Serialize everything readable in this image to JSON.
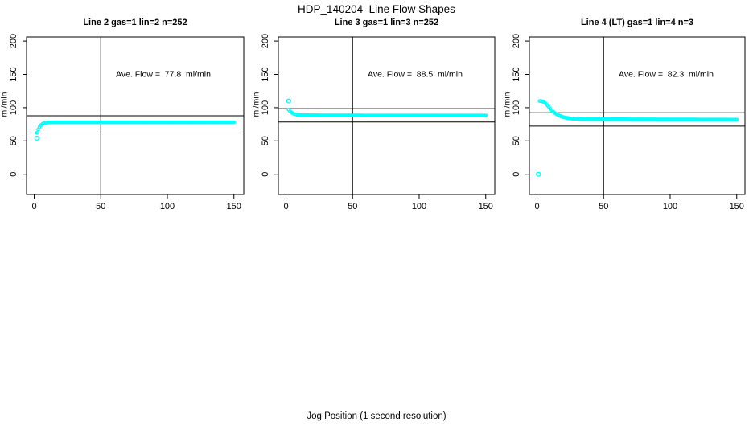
{
  "chart_data": {
    "type": "scatter",
    "title": "HDP_140204  Line Flow Shapes",
    "xlabel": "Jog Position (1 second resolution)",
    "point_color": "#00FFFF",
    "axis_color": "#000000",
    "x_ticks": [
      0,
      50,
      100,
      150
    ],
    "y_ticks": [
      0,
      50,
      100,
      150,
      200
    ],
    "xlim": [
      -6,
      156
    ],
    "ylim": [
      -30,
      206
    ],
    "grid": false,
    "legend": "none",
    "panels": [
      {
        "title": "Line 2 gas=1 lin=2 n=252",
        "ylabel": "ml/min",
        "annotation": "Ave. Flow =  77.8  ml/min",
        "ave_flow": 77.8,
        "ref_lines": [
          87.8,
          67.8
        ],
        "vline_x": 50,
        "n": 252,
        "outlier_points": [
          [
            2,
            54
          ]
        ],
        "curve_points": [
          [
            2,
            62
          ],
          [
            3,
            67
          ],
          [
            4,
            71
          ],
          [
            5,
            73.5
          ],
          [
            6,
            75.3
          ],
          [
            7,
            76.4
          ],
          [
            8,
            77
          ],
          [
            9,
            77.4
          ],
          [
            10,
            77.7
          ],
          [
            12,
            77.9
          ],
          [
            15,
            78
          ],
          [
            20,
            78
          ],
          [
            30,
            78
          ],
          [
            40,
            78
          ],
          [
            50,
            78
          ],
          [
            60,
            78
          ],
          [
            70,
            78
          ],
          [
            80,
            78
          ],
          [
            90,
            78
          ],
          [
            100,
            78
          ],
          [
            110,
            78
          ],
          [
            120,
            78
          ],
          [
            130,
            78
          ],
          [
            140,
            78
          ],
          [
            150,
            78
          ]
        ]
      },
      {
        "title": "Line 3 gas=1 lin=3 n=252",
        "ylabel": "ml/min",
        "annotation": "Ave. Flow =  88.5  ml/min",
        "ave_flow": 88.5,
        "ref_lines": [
          98.5,
          78.5
        ],
        "vline_x": 50,
        "n": 252,
        "outlier_points": [
          [
            2,
            110
          ]
        ],
        "curve_points": [
          [
            2,
            97
          ],
          [
            3,
            94.5
          ],
          [
            4,
            92.8
          ],
          [
            5,
            91.5
          ],
          [
            6,
            90.6
          ],
          [
            7,
            90
          ],
          [
            8,
            89.5
          ],
          [
            9,
            89.2
          ],
          [
            10,
            89
          ],
          [
            12,
            88.7
          ],
          [
            15,
            88.5
          ],
          [
            20,
            88.4
          ],
          [
            30,
            88.3
          ],
          [
            40,
            88.3
          ],
          [
            50,
            88.3
          ],
          [
            60,
            88.2
          ],
          [
            70,
            88.2
          ],
          [
            80,
            88.2
          ],
          [
            90,
            88.2
          ],
          [
            100,
            88.2
          ],
          [
            110,
            88.2
          ],
          [
            120,
            88.2
          ],
          [
            130,
            88.2
          ],
          [
            140,
            88.2
          ],
          [
            150,
            88.2
          ]
        ]
      },
      {
        "title": "Line 4 (LT) gas=1 lin=4 n=3",
        "ylabel": "ml/min",
        "annotation": "Ave. Flow =  82.3  ml/min",
        "ave_flow": 82.3,
        "ref_lines": [
          92.3,
          72.3
        ],
        "vline_x": 50,
        "n": 3,
        "outlier_points": [
          [
            1,
            0
          ]
        ],
        "curve_points": [
          [
            2,
            110
          ],
          [
            3,
            110
          ],
          [
            4,
            109.3
          ],
          [
            5,
            108.3
          ],
          [
            6,
            107
          ],
          [
            7,
            105.3
          ],
          [
            8,
            103.2
          ],
          [
            9,
            100.8
          ],
          [
            10,
            98.4
          ],
          [
            11,
            96.2
          ],
          [
            12,
            94.2
          ],
          [
            13,
            92.5
          ],
          [
            14,
            91
          ],
          [
            15,
            89.7
          ],
          [
            16,
            88.6
          ],
          [
            17,
            87.7
          ],
          [
            18,
            86.9
          ],
          [
            20,
            85.6
          ],
          [
            22,
            84.7
          ],
          [
            24,
            84.1
          ],
          [
            26,
            83.6
          ],
          [
            28,
            83.3
          ],
          [
            30,
            83.1
          ],
          [
            35,
            82.8
          ],
          [
            40,
            82.7
          ],
          [
            50,
            82.6
          ],
          [
            60,
            82.5
          ],
          [
            70,
            82.4
          ],
          [
            80,
            82.4
          ],
          [
            90,
            82.3
          ],
          [
            100,
            82.3
          ],
          [
            110,
            82.2
          ],
          [
            120,
            82.2
          ],
          [
            130,
            82.1
          ],
          [
            140,
            82.1
          ],
          [
            150,
            82
          ]
        ]
      }
    ]
  }
}
